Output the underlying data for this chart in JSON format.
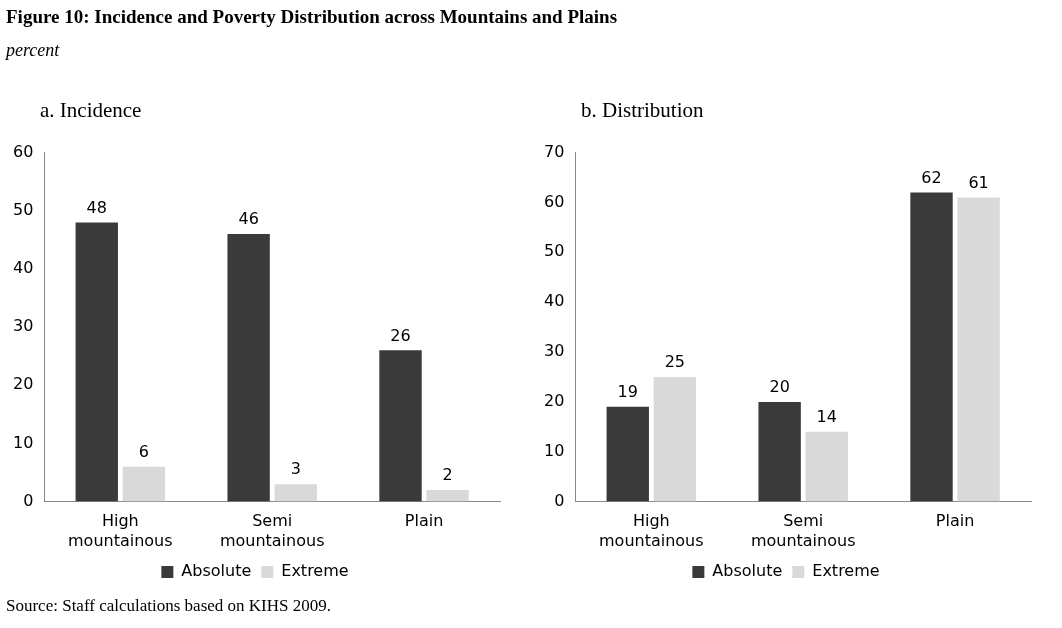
{
  "chart_data": [
    {
      "type": "bar",
      "title": "Figure 10: Incidence and Poverty Distribution across Mountains and Plains",
      "subtitle": "percent",
      "annotations": [
        "a.   Incidence",
        "Source: Staff calculations based on KIHS 2009."
      ],
      "categories": [
        "High mountainous",
        "Semi mountainous",
        "Plain"
      ],
      "series": [
        {
          "name": "Absolute",
          "color": "#3a3a3a",
          "values": [
            48,
            46,
            26
          ]
        },
        {
          "name": "Extreme",
          "color": "#d9d9d9",
          "values": [
            6,
            3,
            2
          ]
        }
      ],
      "ylim": [
        0,
        60
      ],
      "yticks": [
        0,
        10,
        20,
        30,
        40,
        50,
        60
      ],
      "grid": false,
      "legend": "bottom",
      "data_labels": true
    },
    {
      "type": "bar",
      "title": "b.   Distribution",
      "categories": [
        "High mountainous",
        "Semi mountainous",
        "Plain"
      ],
      "series": [
        {
          "name": "Absolute",
          "color": "#3a3a3a",
          "values": [
            19,
            20,
            62
          ]
        },
        {
          "name": "Extreme",
          "color": "#d9d9d9",
          "values": [
            25,
            14,
            61
          ]
        }
      ],
      "ylim": [
        0,
        70
      ],
      "yticks": [
        0,
        10,
        20,
        30,
        40,
        50,
        60,
        70
      ],
      "grid": false,
      "legend": "bottom",
      "data_labels": true
    }
  ]
}
